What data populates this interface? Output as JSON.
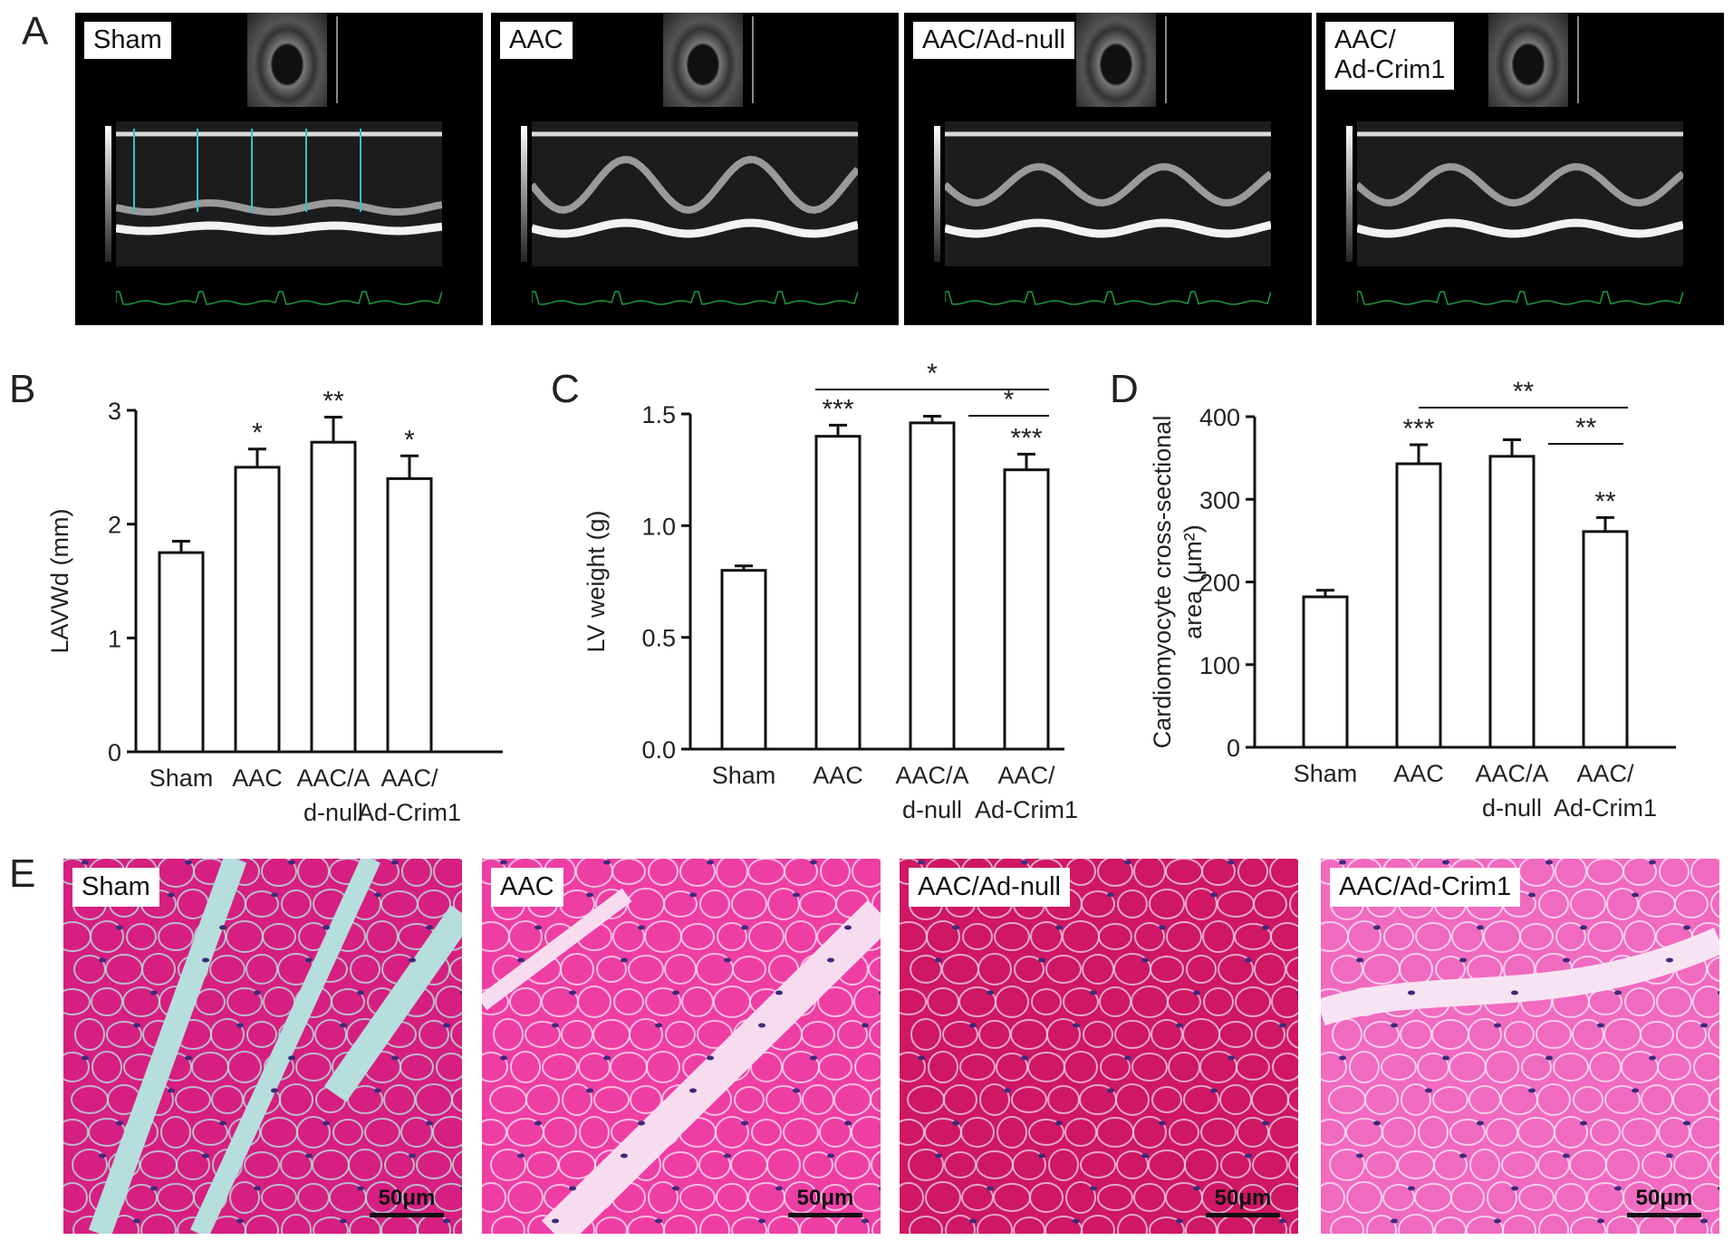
{
  "panels": {
    "a": "A",
    "b": "B",
    "c": "C",
    "d": "D",
    "e": "E"
  },
  "echo": [
    {
      "label": "Sham"
    },
    {
      "label": "AAC"
    },
    {
      "label": "AAC/Ad-null"
    },
    {
      "label": "AAC/\nAd-Crim1"
    }
  ],
  "histology": [
    {
      "label": "Sham",
      "scale": "50μm",
      "tissue_color": "#d61f80",
      "gap_color": "#b6dedd"
    },
    {
      "label": "AAC",
      "scale": "50μm",
      "tissue_color": "#ee3ea4",
      "gap_color": "#f7dcef"
    },
    {
      "label": "AAC/Ad-null",
      "scale": "50μm",
      "tissue_color": "#cf1763",
      "gap_color": "#e9cbe3"
    },
    {
      "label": "AAC/Ad-Crim1",
      "scale": "50μm",
      "tissue_color": "#f06ac0",
      "gap_color": "#f8e3f2"
    }
  ],
  "chart_data": [
    {
      "type": "bar",
      "panel": "B",
      "ylabel": "LAVWd (mm)",
      "categories": [
        "Sham",
        "AAC",
        "AAC/A\nd-null",
        "AAC/\nAd-Crim1"
      ],
      "values": [
        1.75,
        2.5,
        2.72,
        2.4
      ],
      "errors": [
        0.1,
        0.16,
        0.22,
        0.2
      ],
      "ylim": [
        0,
        3
      ],
      "yticks": [
        "0",
        "1",
        "2",
        "3"
      ],
      "bar_annotations": [
        "",
        "*",
        "**",
        "*"
      ],
      "comparisons": []
    },
    {
      "type": "bar",
      "panel": "C",
      "ylabel": "LV weight (g)",
      "categories": [
        "Sham",
        "AAC",
        "AAC/A\nd-null",
        "AAC/\nAd-Crim1"
      ],
      "values": [
        0.8,
        1.4,
        1.46,
        1.25
      ],
      "errors": [
        0.02,
        0.05,
        0.03,
        0.07
      ],
      "ylim": [
        0,
        1.5
      ],
      "yticks": [
        "0.0",
        "0.5",
        "1.0",
        "1.5"
      ],
      "bar_annotations": [
        "",
        "***",
        "",
        "***"
      ],
      "comparisons": [
        {
          "from": 1,
          "to": 3,
          "label": "*"
        },
        {
          "from": 2,
          "to": 3,
          "label": "*"
        }
      ]
    },
    {
      "type": "bar",
      "panel": "D",
      "ylabel": "Cardiomyocyte cross-sectional\narea (μm²)",
      "categories": [
        "Sham",
        "AAC",
        "AAC/A\nd-null",
        "AAC/\nAd-Crim1"
      ],
      "values": [
        182,
        343,
        352,
        261
      ],
      "errors": [
        8,
        23,
        20,
        17
      ],
      "ylim": [
        0,
        400
      ],
      "yticks": [
        "0",
        "100",
        "200",
        "300",
        "400"
      ],
      "bar_annotations": [
        "",
        "***",
        "",
        "**"
      ],
      "comparisons": [
        {
          "from": 1,
          "to": 3,
          "label": "**"
        },
        {
          "from": 2,
          "to": 3,
          "label": "**"
        }
      ]
    }
  ]
}
